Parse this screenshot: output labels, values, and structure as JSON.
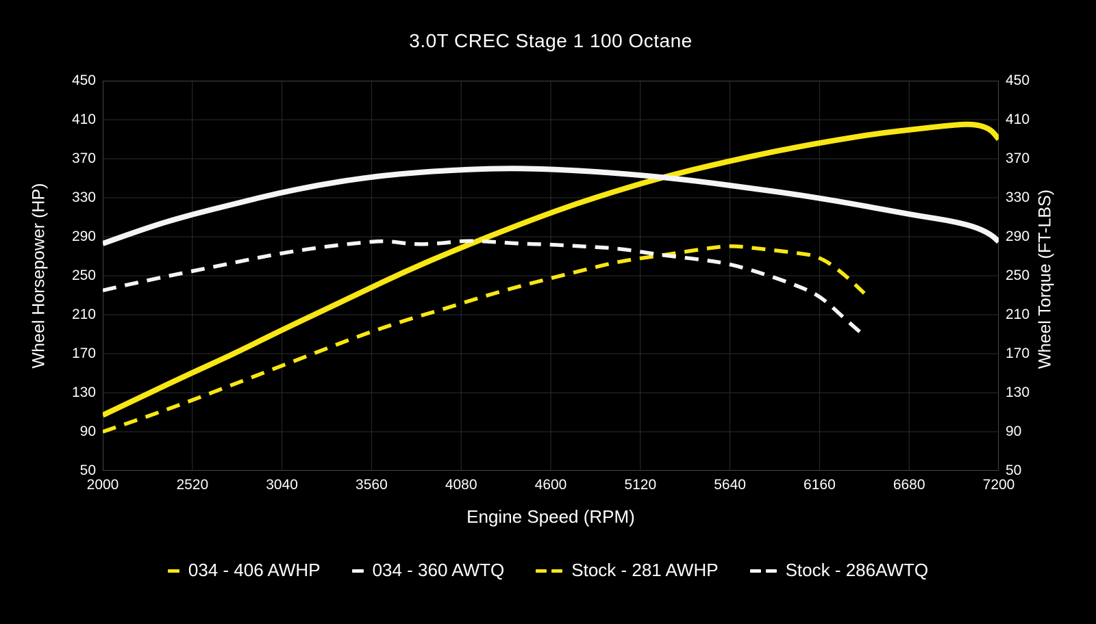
{
  "title": "3.0T CREC Stage 1 100 Octane",
  "axes": {
    "x_label": "Engine Speed (RPM)",
    "y_left_label": "Wheel Horsepower (HP)",
    "y_right_label": "Wheel Torque (FT-LBS)"
  },
  "colors": {
    "background": "#000000",
    "text": "#ffffff",
    "grid": "#2e2e2e",
    "spine": "#454545",
    "yellow": "#f8e714",
    "white": "#f5f5f5"
  },
  "legend": {
    "items": [
      {
        "label": "034 - 406 AWHP",
        "color": "yellow",
        "style": "solid"
      },
      {
        "label": "034 - 360 AWTQ",
        "color": "white",
        "style": "solid"
      },
      {
        "label": "Stock - 281 AWHP",
        "color": "yellow",
        "style": "dashed"
      },
      {
        "label": "Stock - 286AWTQ",
        "color": "white",
        "style": "dashed"
      }
    ]
  },
  "chart_data": {
    "type": "line",
    "title": "3.0T CREC Stage 1 100 Octane",
    "xlabel": "Engine Speed (RPM)",
    "ylabel_left": "Wheel Horsepower (HP)",
    "ylabel_right": "Wheel Torque (FT-LBS)",
    "xlim": [
      2000,
      7200
    ],
    "ylim": [
      50,
      450
    ],
    "x_ticks": [
      2000,
      2520,
      3040,
      3560,
      4080,
      4600,
      5120,
      5640,
      6160,
      6680,
      7200
    ],
    "y_ticks": [
      50,
      90,
      130,
      170,
      210,
      250,
      290,
      330,
      370,
      410,
      450
    ],
    "grid": true,
    "legend_position": "bottom",
    "series": [
      {
        "name": "034 - 406 AWHP",
        "axis": "hp-left",
        "color": "yellow",
        "style": "solid",
        "peak": 406,
        "points": [
          [
            2000,
            107
          ],
          [
            2250,
            128
          ],
          [
            2500,
            149
          ],
          [
            2750,
            169
          ],
          [
            3000,
            191
          ],
          [
            3250,
            212
          ],
          [
            3500,
            233
          ],
          [
            3750,
            254
          ],
          [
            4000,
            273
          ],
          [
            4250,
            291
          ],
          [
            4500,
            308
          ],
          [
            4750,
            324
          ],
          [
            5000,
            338
          ],
          [
            5250,
            351
          ],
          [
            5500,
            362
          ],
          [
            5750,
            372
          ],
          [
            6000,
            381
          ],
          [
            6250,
            389
          ],
          [
            6500,
            396
          ],
          [
            6750,
            401
          ],
          [
            6900,
            404
          ],
          [
            7050,
            406
          ],
          [
            7150,
            401
          ],
          [
            7200,
            390
          ]
        ]
      },
      {
        "name": "034 - 360 AWTQ",
        "axis": "torque-right",
        "color": "white",
        "style": "solid",
        "peak": 360,
        "points": [
          [
            2000,
            283
          ],
          [
            2250,
            299
          ],
          [
            2500,
            312
          ],
          [
            2750,
            323
          ],
          [
            3000,
            334
          ],
          [
            3250,
            343
          ],
          [
            3500,
            350
          ],
          [
            3750,
            355
          ],
          [
            4000,
            358
          ],
          [
            4250,
            360
          ],
          [
            4500,
            360
          ],
          [
            4750,
            358
          ],
          [
            5000,
            355
          ],
          [
            5250,
            351
          ],
          [
            5500,
            346
          ],
          [
            5750,
            340
          ],
          [
            6000,
            334
          ],
          [
            6250,
            327
          ],
          [
            6500,
            319
          ],
          [
            6750,
            311
          ],
          [
            6900,
            307
          ],
          [
            7050,
            301
          ],
          [
            7150,
            293
          ],
          [
            7200,
            285
          ]
        ]
      },
      {
        "name": "Stock - 281 AWHP",
        "axis": "hp-left",
        "color": "yellow",
        "style": "dashed",
        "peak": 281,
        "points": [
          [
            2000,
            90
          ],
          [
            2250,
            105
          ],
          [
            2500,
            121
          ],
          [
            2750,
            138
          ],
          [
            3000,
            155
          ],
          [
            3250,
            172
          ],
          [
            3500,
            189
          ],
          [
            3750,
            204
          ],
          [
            4000,
            217
          ],
          [
            4250,
            231
          ],
          [
            4500,
            243
          ],
          [
            4750,
            254
          ],
          [
            5000,
            265
          ],
          [
            5250,
            271
          ],
          [
            5500,
            278
          ],
          [
            5650,
            281
          ],
          [
            5800,
            278
          ],
          [
            6000,
            274
          ],
          [
            6160,
            270
          ],
          [
            6300,
            252
          ],
          [
            6420,
            232
          ]
        ]
      },
      {
        "name": "Stock - 286AWTQ",
        "axis": "torque-right",
        "color": "white",
        "style": "dashed",
        "peak": 286,
        "points": [
          [
            2000,
            235
          ],
          [
            2250,
            245
          ],
          [
            2500,
            254
          ],
          [
            2750,
            263
          ],
          [
            3000,
            272
          ],
          [
            3250,
            279
          ],
          [
            3500,
            284
          ],
          [
            3650,
            286
          ],
          [
            3800,
            282
          ],
          [
            3950,
            283
          ],
          [
            4100,
            286
          ],
          [
            4250,
            285
          ],
          [
            4400,
            283
          ],
          [
            4600,
            282
          ],
          [
            4800,
            280
          ],
          [
            5000,
            278
          ],
          [
            5250,
            271
          ],
          [
            5500,
            266
          ],
          [
            5640,
            262
          ],
          [
            5800,
            254
          ],
          [
            6000,
            242
          ],
          [
            6160,
            230
          ],
          [
            6300,
            207
          ],
          [
            6410,
            190
          ]
        ]
      }
    ]
  }
}
